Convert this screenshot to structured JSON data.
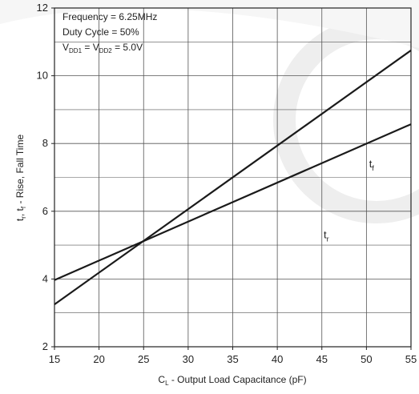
{
  "chart_data": {
    "type": "line",
    "title": "",
    "xlabel": {
      "main": "C",
      "sub": "L",
      "rest": " - Output Load Capacitance (pF)"
    },
    "ylabel": {
      "a": "t",
      "a_sub": "r",
      "b": ", t",
      "b_sub": "f",
      "rest": " - Rise, Fall Time"
    },
    "xlim": [
      15,
      55
    ],
    "ylim": [
      2,
      12
    ],
    "xticks": [
      15,
      20,
      25,
      30,
      35,
      40,
      45,
      50,
      55
    ],
    "yticks": [
      2,
      4,
      6,
      8,
      10,
      12
    ],
    "grid": true,
    "annotations": {
      "frequency": "Frequency = 6.25MHz",
      "duty": "Duty Cycle = 50%",
      "vdd": {
        "v1": "V",
        "v1_sub": "DD1",
        "eq": " = V",
        "v2_sub": "DD2",
        "val": " = 5.0V"
      }
    },
    "series": [
      {
        "label_main": "t",
        "label_sub": "f",
        "color": "#1a1a1a",
        "points": [
          [
            15,
            3.25
          ],
          [
            55,
            10.75
          ]
        ],
        "label_at": [
          50.3,
          7.3
        ]
      },
      {
        "label_main": "t",
        "label_sub": "r",
        "color": "#1a1a1a",
        "points": [
          [
            15,
            3.97
          ],
          [
            55,
            8.57
          ]
        ],
        "label_at": [
          45.2,
          5.2
        ]
      }
    ],
    "colors": {
      "grid": "#555555",
      "axis": "#222222",
      "text": "#222222",
      "watermark": "#eeeeee"
    }
  }
}
